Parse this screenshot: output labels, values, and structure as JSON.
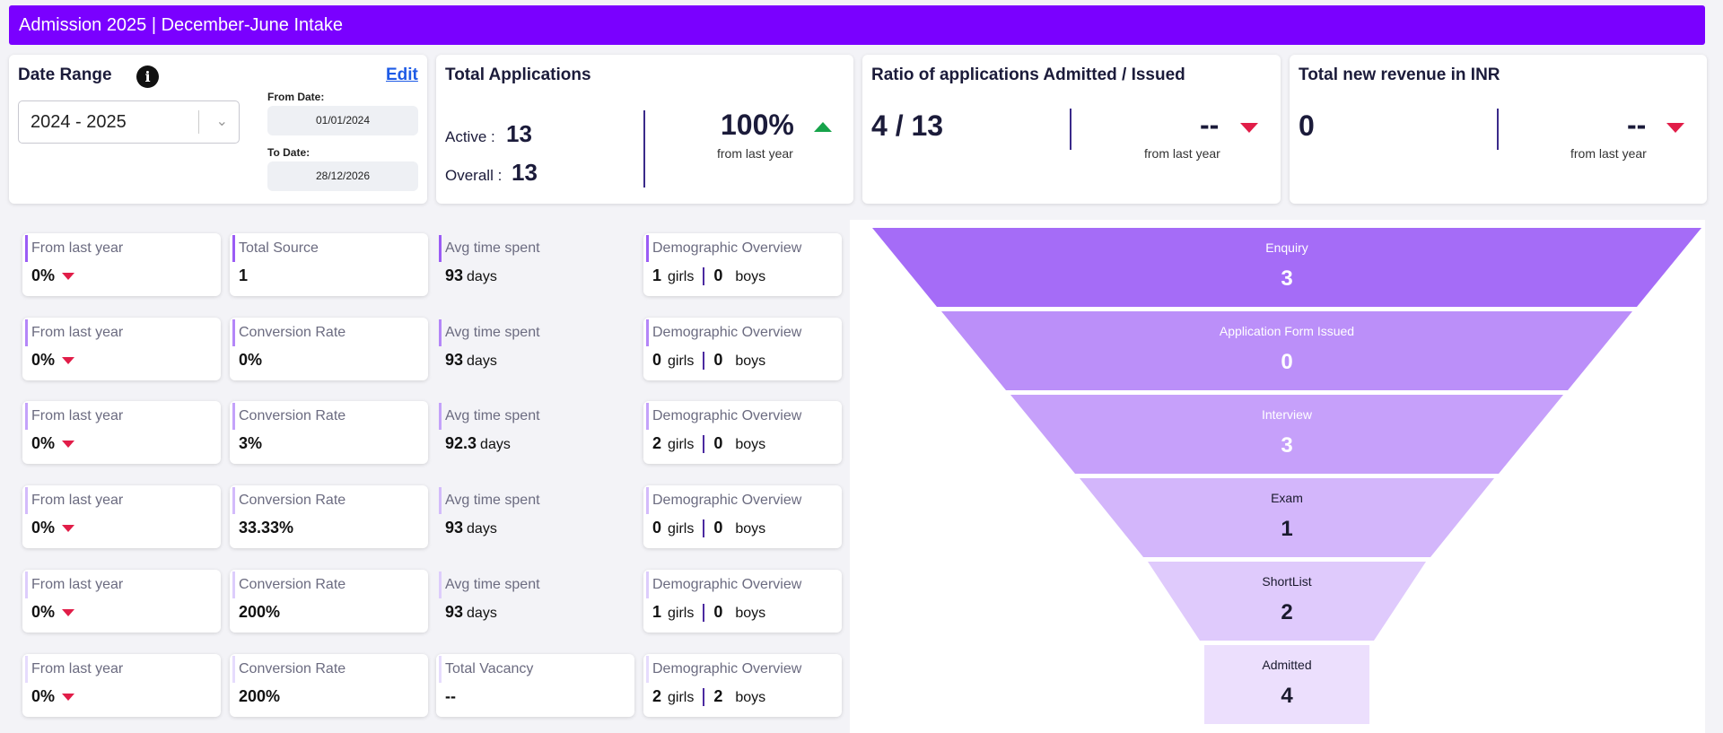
{
  "header": {
    "title": "Admission 2025 | December-June Intake"
  },
  "date_range": {
    "title": "Date Range",
    "edit_label": "Edit",
    "selected_year": "2024 - 2025",
    "from_label": "From Date:",
    "from_value": "01/01/2024",
    "to_label": "To Date:",
    "to_value": "28/12/2026"
  },
  "total_applications": {
    "title": "Total Applications",
    "active_label": "Active :",
    "active_value": "13",
    "overall_label": "Overall :",
    "overall_value": "13",
    "change": "100%",
    "change_caption": "from last year"
  },
  "ratio": {
    "title": "Ratio of applications Admitted / Issued",
    "value": "4 / 13",
    "change": "--",
    "change_caption": "from last year"
  },
  "revenue": {
    "title": "Total new revenue in INR",
    "value": "0",
    "change": "--",
    "change_caption": "from last year"
  },
  "rows": [
    {
      "c1_label": "From last year",
      "c1_value": "0%",
      "c2_label": "Total Source",
      "c2_value": "1",
      "c3_label": "Avg time spent",
      "c3_value": "93",
      "c3_unit": "days",
      "c4_label": "Demographic Overview",
      "girls": "1",
      "boys": "0"
    },
    {
      "c1_label": "From last year",
      "c1_value": "0%",
      "c2_label": "Conversion Rate",
      "c2_value": "0%",
      "c3_label": "Avg time spent",
      "c3_value": "93",
      "c3_unit": "days",
      "c4_label": "Demographic Overview",
      "girls": "0",
      "boys": "0"
    },
    {
      "c1_label": "From last year",
      "c1_value": "0%",
      "c2_label": "Conversion Rate",
      "c2_value": "3%",
      "c3_label": "Avg time spent",
      "c3_value": "92.3",
      "c3_unit": "days",
      "c4_label": "Demographic Overview",
      "girls": "2",
      "boys": "0"
    },
    {
      "c1_label": "From last year",
      "c1_value": "0%",
      "c2_label": "Conversion Rate",
      "c2_value": "33.33%",
      "c3_label": "Avg time spent",
      "c3_value": "93",
      "c3_unit": "days",
      "c4_label": "Demographic Overview",
      "girls": "0",
      "boys": "0"
    },
    {
      "c1_label": "From last year",
      "c1_value": "0%",
      "c2_label": "Conversion Rate",
      "c2_value": "200%",
      "c3_label": "Avg time spent",
      "c3_value": "93",
      "c3_unit": "days",
      "c4_label": "Demographic Overview",
      "girls": "1",
      "boys": "0"
    },
    {
      "c1_label": "From last year",
      "c1_value": "0%",
      "c2_label": "Conversion Rate",
      "c2_value": "200%",
      "c3_label": "Total Vacancy",
      "c3_value": "--",
      "c3_unit": "",
      "c4_label": "Demographic Overview",
      "girls": "2",
      "boys": "2"
    }
  ],
  "demographic_units": {
    "girls": "girls",
    "boys": "boys"
  },
  "chart_data": {
    "type": "funnel",
    "stages": [
      {
        "label": "Enquiry",
        "value": 3,
        "color": "#a56cf7"
      },
      {
        "label": "Application Form Issued",
        "value": 0,
        "color": "#bb8ff9"
      },
      {
        "label": "Interview",
        "value": 3,
        "color": "#c6a0fa"
      },
      {
        "label": "Exam",
        "value": 1,
        "color": "#d3b6fb"
      },
      {
        "label": "ShortList",
        "value": 2,
        "color": "#dfcafc"
      },
      {
        "label": "Admitted",
        "value": 4,
        "color": "#ecdffd"
      }
    ]
  },
  "colors": {
    "accent": "#7a00ff",
    "up": "#16a34a",
    "down": "#e11d48",
    "tile_bars": [
      "#9b5cf5",
      "#b486f8",
      "#c4a2fa",
      "#d3bbfb",
      "#ddcdfc",
      "#e6dcfd"
    ]
  }
}
